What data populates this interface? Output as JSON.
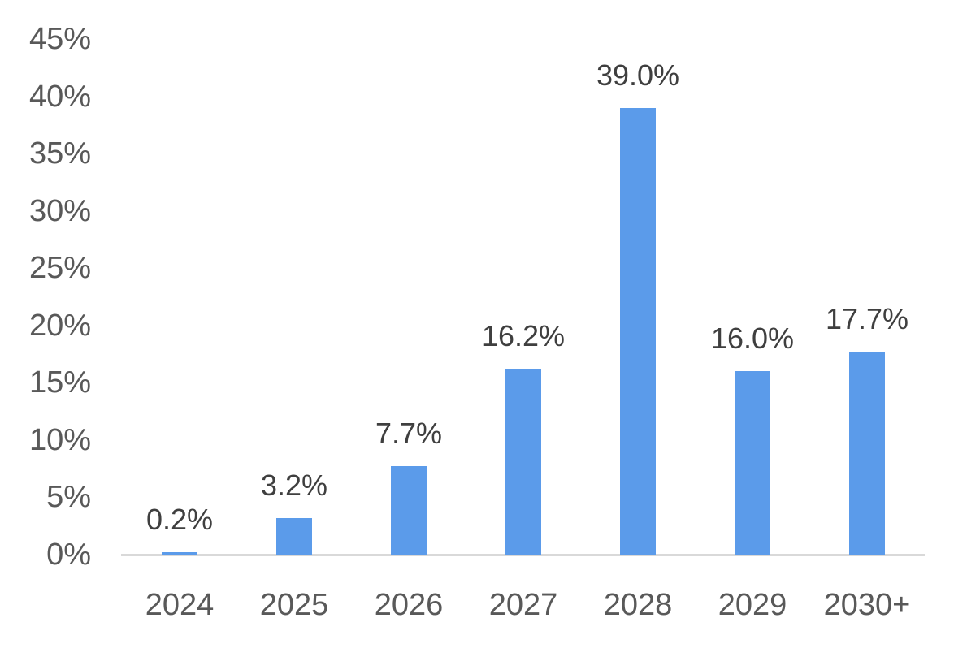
{
  "chart_data": {
    "type": "bar",
    "title": "",
    "xlabel": "",
    "ylabel": "",
    "categories": [
      "2024",
      "2025",
      "2026",
      "2027",
      "2028",
      "2029",
      "2030+"
    ],
    "values": [
      0.2,
      3.2,
      7.7,
      16.2,
      39.0,
      16.0,
      17.7
    ],
    "data_labels": [
      "0.2%",
      "3.2%",
      "7.7%",
      "16.2%",
      "39.0%",
      "16.0%",
      "17.7%"
    ],
    "y_axis": {
      "tick_values": [
        0,
        5,
        10,
        15,
        20,
        25,
        30,
        35,
        40,
        45
      ],
      "tick_labels": [
        "0%",
        "5%",
        "10%",
        "15%",
        "20%",
        "25%",
        "30%",
        "35%",
        "40%",
        "45%"
      ],
      "range": [
        0,
        45
      ]
    },
    "grid": false,
    "legend": "none",
    "colors": {
      "bar": "#5B9BEA",
      "axis_line": "#D9D9D9",
      "tick_label": "#595959",
      "data_label": "#3F3F3F",
      "background": "#FFFFFF"
    }
  }
}
